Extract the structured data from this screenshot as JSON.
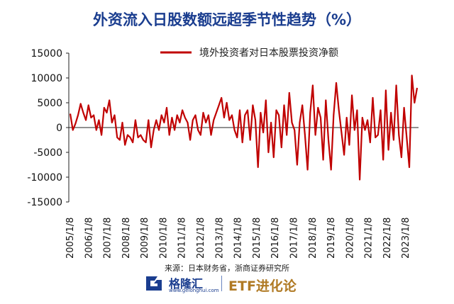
{
  "title": "外资流入日股数额远超季节性趋势（%）",
  "source": "来源：日本财务省，浙商证券研究所",
  "footer": {
    "logo_text": "格隆汇",
    "logo_url": "www.gelonghui.com",
    "brand": "ETF进化论"
  },
  "colors": {
    "series": "#c00000",
    "title": "#1a3d8f",
    "brand": "#b07a24"
  },
  "chart_data": {
    "type": "line",
    "title": "外资流入日股数额远超季节性趋势（%）",
    "xlabel": "",
    "ylabel": "",
    "ylim": [
      -15000,
      15000
    ],
    "yticks": [
      15000,
      10000,
      5000,
      0,
      -5000,
      -10000,
      -15000
    ],
    "ytick_labels": [
      "15000",
      "10000",
      "5000",
      "0",
      "-5000",
      "-10000",
      "-15000"
    ],
    "xticks": [
      "2005/1/8",
      "2006/1/8",
      "2007/1/8",
      "2008/1/8",
      "2009/1/8",
      "2010/1/8",
      "2011/1/8",
      "2012/1/8",
      "2013/1/8",
      "2014/1/8",
      "2015/1/8",
      "2016/1/8",
      "2017/1/8",
      "2018/1/8",
      "2019/1/8",
      "2020/1/8",
      "2021/1/8",
      "2022/1/8",
      "2023/1/8"
    ],
    "x_start_year": 2005,
    "x_end_year": 2023.6,
    "grid": false,
    "legend_position": "top",
    "series": [
      {
        "name": "境外投资者对日本股票投资净额",
        "values": [
          2800,
          -500,
          800,
          2500,
          4800,
          3000,
          1500,
          4500,
          2000,
          2500,
          -500,
          1500,
          -1500,
          4000,
          3000,
          5500,
          1000,
          2500,
          -2000,
          -2500,
          1000,
          -3500,
          -1500,
          -2000,
          -3000,
          1500,
          -2000,
          -1500,
          -2500,
          -3000,
          1500,
          -4000,
          -500,
          1500,
          -500,
          2500,
          1000,
          4000,
          -1500,
          2000,
          -500,
          2500,
          1000,
          3500,
          2000,
          1000,
          -2500,
          1500,
          2500,
          -500,
          -1500,
          3000,
          1000,
          2500,
          -1500,
          1500,
          3000,
          4500,
          6000,
          2000,
          5000,
          1500,
          2500,
          -500,
          -2000,
          3500,
          -3000,
          2500,
          3500,
          -2500,
          4500,
          1500,
          -8000,
          3000,
          -1000,
          5500,
          -5000,
          1000,
          -6000,
          3500,
          2500,
          -4000,
          4500,
          -1500,
          7000,
          1000,
          -500,
          -7500,
          1000,
          4500,
          -1500,
          -8500,
          3000,
          8500,
          -1500,
          4000,
          2000,
          -6500,
          5500,
          -2500,
          -8500,
          2500,
          9000,
          3500,
          -1000,
          -5500,
          2000,
          -3500,
          6500,
          -500,
          3500,
          -10500,
          2000,
          -500,
          1500,
          -3000,
          6000,
          -2000,
          -1500,
          3500,
          -6500,
          7500,
          -4500,
          3000,
          -2500,
          8500,
          -1500,
          -6000,
          4000,
          -2000,
          -8000,
          10500,
          5000,
          8000
        ]
      }
    ]
  }
}
